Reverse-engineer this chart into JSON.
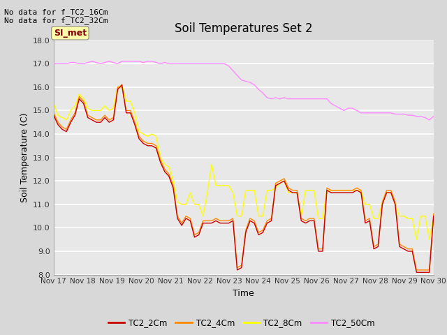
{
  "title": "Soil Temperatures Set 2",
  "xlabel": "Time",
  "ylabel": "Soil Temperature (C)",
  "ylim": [
    8.0,
    18.0
  ],
  "yticks": [
    8.0,
    9.0,
    10.0,
    11.0,
    12.0,
    13.0,
    14.0,
    15.0,
    16.0,
    17.0,
    18.0
  ],
  "xtick_labels": [
    "Nov 17",
    "Nov 18",
    "Nov 19",
    "Nov 20",
    "Nov 21",
    "Nov 22",
    "Nov 23",
    "Nov 24",
    "Nov 25",
    "Nov 26",
    "Nov 27",
    "Nov 28",
    "Nov 29",
    "Nov 30"
  ],
  "no_data_text": [
    "No data for f_TC2_16Cm",
    "No data for f_TC2_32Cm"
  ],
  "legend_label": "SI_met",
  "legend_entries": [
    "TC2_2Cm",
    "TC2_4Cm",
    "TC2_8Cm",
    "TC2_50Cm"
  ],
  "colors": {
    "TC2_2Cm": "#cc0000",
    "TC2_4Cm": "#ff8800",
    "TC2_8Cm": "#ffff00",
    "TC2_50Cm": "#ff88ff"
  },
  "background_color": "#d8d8d8",
  "plot_bg_color": "#e8e8e8",
  "TC2_2Cm": [
    14.8,
    14.4,
    14.2,
    14.1,
    14.5,
    14.8,
    15.5,
    15.3,
    14.7,
    14.6,
    14.5,
    14.5,
    14.7,
    14.5,
    14.6,
    15.9,
    16.1,
    14.9,
    14.9,
    14.4,
    13.8,
    13.6,
    13.5,
    13.5,
    13.4,
    12.8,
    12.4,
    12.2,
    11.7,
    10.4,
    10.1,
    10.4,
    10.3,
    9.6,
    9.7,
    10.2,
    10.2,
    10.2,
    10.3,
    10.2,
    10.2,
    10.2,
    10.3,
    8.2,
    8.3,
    9.8,
    10.3,
    10.2,
    9.7,
    9.8,
    10.2,
    10.3,
    11.8,
    11.9,
    12.0,
    11.6,
    11.5,
    11.5,
    10.3,
    10.2,
    10.3,
    10.3,
    9.0,
    9.0,
    11.6,
    11.5,
    11.5,
    11.5,
    11.5,
    11.5,
    11.5,
    11.6,
    11.5,
    10.2,
    10.3,
    9.1,
    9.2,
    11.0,
    11.5,
    11.5,
    11.0,
    9.2,
    9.1,
    9.0,
    9.0,
    8.1,
    8.1,
    8.1,
    8.1,
    10.5
  ],
  "TC2_4Cm": [
    14.9,
    14.5,
    14.3,
    14.2,
    14.6,
    14.9,
    15.6,
    15.4,
    14.8,
    14.7,
    14.6,
    14.6,
    14.8,
    14.6,
    14.7,
    16.0,
    16.0,
    15.0,
    15.0,
    14.5,
    13.9,
    13.7,
    13.6,
    13.6,
    13.5,
    12.9,
    12.5,
    12.3,
    11.8,
    10.5,
    10.2,
    10.5,
    10.4,
    9.7,
    9.8,
    10.3,
    10.3,
    10.3,
    10.4,
    10.3,
    10.3,
    10.3,
    10.4,
    8.3,
    8.4,
    9.9,
    10.4,
    10.3,
    9.8,
    9.9,
    10.3,
    10.4,
    11.9,
    12.0,
    12.1,
    11.7,
    11.6,
    11.6,
    10.4,
    10.3,
    10.4,
    10.4,
    9.1,
    9.1,
    11.7,
    11.6,
    11.6,
    11.6,
    11.6,
    11.6,
    11.6,
    11.7,
    11.6,
    10.3,
    10.4,
    9.2,
    9.3,
    11.1,
    11.6,
    11.6,
    11.1,
    9.3,
    9.2,
    9.1,
    9.1,
    8.2,
    8.2,
    8.2,
    8.2,
    10.6
  ],
  "TC2_8Cm": [
    15.3,
    14.8,
    14.7,
    14.6,
    15.0,
    15.2,
    15.7,
    15.5,
    15.1,
    15.0,
    15.0,
    15.0,
    15.2,
    15.0,
    15.1,
    16.0,
    16.1,
    15.4,
    15.4,
    14.9,
    14.1,
    14.0,
    13.9,
    14.0,
    13.9,
    13.0,
    12.7,
    12.6,
    12.0,
    11.1,
    11.0,
    11.0,
    11.5,
    11.0,
    11.0,
    10.5,
    11.5,
    12.7,
    11.8,
    11.8,
    11.8,
    11.8,
    11.5,
    10.5,
    10.5,
    11.6,
    11.6,
    11.6,
    10.5,
    10.5,
    11.6,
    11.6,
    11.7,
    11.9,
    12.0,
    11.5,
    11.5,
    11.5,
    10.5,
    11.6,
    11.6,
    11.6,
    10.4,
    10.4,
    11.6,
    11.6,
    11.6,
    11.6,
    11.6,
    11.6,
    11.6,
    11.6,
    11.6,
    11.0,
    11.0,
    10.4,
    10.4,
    11.1,
    11.5,
    11.5,
    11.0,
    10.5,
    10.5,
    10.4,
    10.4,
    9.5,
    10.5,
    10.5,
    9.5,
    10.5
  ],
  "TC2_50Cm": [
    17.0,
    17.0,
    17.0,
    17.0,
    17.05,
    17.05,
    17.0,
    17.0,
    17.05,
    17.1,
    17.05,
    17.0,
    17.05,
    17.1,
    17.05,
    17.0,
    17.1,
    17.1,
    17.1,
    17.1,
    17.1,
    17.05,
    17.1,
    17.1,
    17.05,
    17.0,
    17.05,
    17.0,
    17.0,
    17.0,
    17.0,
    17.0,
    17.0,
    17.0,
    17.0,
    17.0,
    17.0,
    17.0,
    17.0,
    17.0,
    17.0,
    16.9,
    16.7,
    16.5,
    16.3,
    16.25,
    16.2,
    16.1,
    15.9,
    15.75,
    15.55,
    15.5,
    15.55,
    15.5,
    15.55,
    15.5,
    15.5,
    15.5,
    15.5,
    15.5,
    15.5,
    15.5,
    15.5,
    15.5,
    15.5,
    15.3,
    15.2,
    15.1,
    15.0,
    15.1,
    15.1,
    15.0,
    14.9,
    14.9,
    14.9,
    14.9,
    14.9,
    14.9,
    14.9,
    14.9,
    14.85,
    14.85,
    14.85,
    14.8,
    14.8,
    14.75,
    14.75,
    14.7,
    14.6,
    14.75
  ]
}
